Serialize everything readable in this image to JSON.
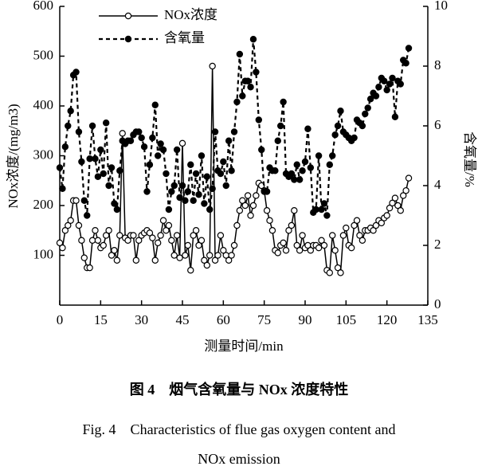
{
  "chart_data": {
    "type": "line",
    "caption_cn": "图 4　烟气含氧量与 NOx 浓度特性",
    "caption_en_1": "Fig. 4　Characteristics of flue gas oxygen content and",
    "caption_en_2": "NOx emission",
    "xlabel": "测量时间/min",
    "ylabel": "NOx浓度/(mg/m3)",
    "y2label": "含氧量/%",
    "xlim": [
      0,
      135
    ],
    "xticks": [
      0,
      15,
      30,
      45,
      60,
      75,
      90,
      105,
      120,
      135
    ],
    "ylim": [
      0,
      600
    ],
    "yticks": [
      100,
      200,
      300,
      400,
      500,
      600
    ],
    "y2lim": [
      0,
      10
    ],
    "y2ticks": [
      0,
      2,
      4,
      6,
      8,
      10
    ],
    "x": [
      0,
      1,
      2,
      3,
      4,
      5,
      6,
      7,
      8,
      9,
      10,
      11,
      12,
      13,
      14,
      15,
      16,
      17,
      18,
      19,
      20,
      21,
      22,
      23,
      24,
      25,
      26,
      27,
      28,
      29,
      30,
      31,
      32,
      33,
      34,
      35,
      36,
      37,
      38,
      39,
      40,
      41,
      42,
      43,
      44,
      45,
      46,
      47,
      48,
      49,
      50,
      51,
      52,
      53,
      54,
      55,
      56,
      57,
      58,
      59,
      60,
      61,
      62,
      63,
      64,
      65,
      66,
      67,
      68,
      69,
      70,
      71,
      72,
      73,
      74,
      75,
      76,
      77,
      78,
      79,
      80,
      81,
      82,
      83,
      84,
      85,
      86,
      87,
      88,
      89,
      90,
      91,
      92,
      93,
      94,
      95,
      96,
      97,
      98,
      99,
      100,
      101,
      102,
      103,
      104,
      105,
      106,
      107,
      108,
      109,
      110,
      111,
      112,
      113,
      114,
      115,
      116,
      117,
      118,
      119,
      120,
      121,
      122,
      123,
      124,
      125,
      126,
      127,
      128
    ],
    "series": [
      {
        "name": "NOx浓度",
        "color": "#000000",
        "marker": "open",
        "dash": false,
        "values": [
          125,
          115,
          150,
          160,
          170,
          210,
          210,
          160,
          130,
          95,
          75,
          75,
          130,
          150,
          130,
          115,
          120,
          140,
          150,
          100,
          110,
          90,
          140,
          345,
          135,
          130,
          140,
          140,
          90,
          130,
          140,
          145,
          150,
          145,
          135,
          90,
          125,
          140,
          170,
          150,
          160,
          130,
          100,
          140,
          95,
          325,
          100,
          120,
          70,
          140,
          150,
          120,
          130,
          90,
          80,
          100,
          480,
          90,
          100,
          140,
          110,
          100,
          90,
          100,
          120,
          160,
          190,
          210,
          200,
          220,
          180,
          200,
          220,
          245,
          240,
          230,
          190,
          170,
          150,
          110,
          105,
          120,
          125,
          110,
          150,
          160,
          190,
          120,
          110,
          140,
          115,
          120,
          110,
          120,
          120,
          115,
          130,
          120,
          70,
          65,
          140,
          110,
          75,
          65,
          140,
          155,
          120,
          115,
          160,
          170,
          140,
          130,
          150,
          150,
          155,
          150,
          160,
          170,
          165,
          175,
          180,
          195,
          205,
          215,
          200,
          190,
          220,
          230,
          255
        ]
      },
      {
        "name": "含氧量",
        "color": "#000000",
        "marker": "filled",
        "dash": true,
        "axis": "y2",
        "values": [
          4.6,
          3.9,
          5.3,
          6.0,
          6.5,
          7.7,
          7.8,
          5.8,
          4.8,
          3.5,
          3.0,
          4.9,
          6.0,
          4.9,
          4.3,
          5.2,
          4.4,
          6.1,
          4.0,
          4.6,
          3.4,
          3.2,
          4.5,
          5.5,
          5.4,
          5.5,
          5.5,
          5.7,
          5.8,
          5.8,
          5.6,
          5.3,
          3.8,
          4.7,
          5.6,
          6.7,
          5.0,
          5.4,
          5.2,
          4.4,
          3.2,
          3.8,
          4.0,
          5.2,
          3.6,
          4.0,
          3.5,
          3.8,
          4.7,
          3.5,
          4.4,
          3.7,
          5.0,
          3.4,
          4.3,
          3.2,
          3.9,
          5.8,
          4.5,
          4.4,
          4.8,
          4.0,
          5.5,
          4.5,
          5.8,
          6.8,
          8.4,
          7.0,
          7.5,
          7.5,
          7.3,
          8.9,
          7.8,
          6.2,
          5.2,
          3.8,
          3.8,
          4.6,
          4.5,
          4.5,
          5.5,
          6.0,
          6.8,
          4.4,
          4.3,
          4.4,
          4.2,
          4.7,
          4.2,
          4.5,
          4.8,
          5.9,
          4.6,
          3.1,
          3.2,
          5.0,
          3.2,
          3.4,
          3.0,
          4.7,
          5.0,
          5.7,
          6.0,
          6.5,
          5.8,
          5.7,
          5.6,
          5.5,
          5.6,
          6.2,
          6.1,
          6.0,
          6.4,
          6.6,
          6.9,
          7.1,
          7.0,
          7.3,
          7.6,
          7.5,
          7.2,
          7.4,
          7.6,
          6.3,
          7.5,
          7.4,
          8.2,
          8.1,
          8.6
        ]
      }
    ]
  }
}
